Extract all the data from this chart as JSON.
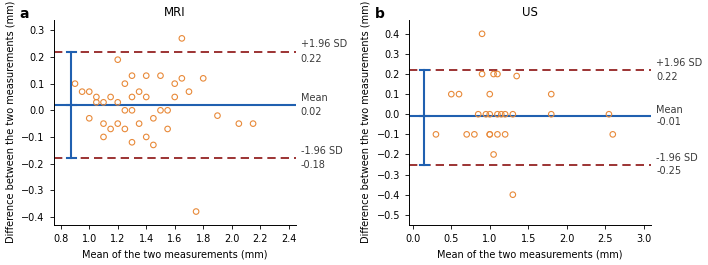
{
  "panel_a": {
    "title": "MRI",
    "mean_line": 0.02,
    "upper_sd": 0.22,
    "lower_sd": -0.18,
    "upper_sd_label": "+1.96 SD",
    "lower_sd_label": "-1.96 SD",
    "mean_label": "Mean",
    "upper_val_label": "0.22",
    "lower_val_label": "-0.18",
    "mean_val_label": "0.02",
    "xlim": [
      0.75,
      2.45
    ],
    "ylim": [
      -0.43,
      0.34
    ],
    "xticks": [
      0.8,
      1.0,
      1.2,
      1.4,
      1.6,
      1.8,
      2.0,
      2.2,
      2.4
    ],
    "yticks": [
      -0.4,
      -0.3,
      -0.2,
      -0.1,
      0.0,
      0.1,
      0.2,
      0.3
    ],
    "error_bar_x": 0.875,
    "scatter_x": [
      0.9,
      0.95,
      1.0,
      1.0,
      1.05,
      1.05,
      1.1,
      1.1,
      1.1,
      1.15,
      1.15,
      1.2,
      1.2,
      1.2,
      1.25,
      1.25,
      1.25,
      1.3,
      1.3,
      1.3,
      1.3,
      1.35,
      1.35,
      1.4,
      1.4,
      1.4,
      1.45,
      1.45,
      1.5,
      1.5,
      1.55,
      1.55,
      1.6,
      1.6,
      1.65,
      1.65,
      1.7,
      1.75,
      1.8,
      1.9,
      2.05,
      2.15
    ],
    "scatter_y": [
      0.1,
      0.07,
      0.07,
      -0.03,
      0.03,
      0.05,
      0.03,
      -0.05,
      -0.1,
      0.05,
      -0.07,
      0.19,
      0.03,
      -0.05,
      0.1,
      0.0,
      -0.07,
      0.13,
      0.05,
      0.0,
      -0.12,
      0.07,
      -0.05,
      0.13,
      0.05,
      -0.1,
      -0.03,
      -0.13,
      0.13,
      0.0,
      0.0,
      -0.07,
      0.1,
      0.05,
      0.27,
      0.12,
      0.07,
      -0.38,
      0.12,
      -0.02,
      -0.05,
      -0.05
    ]
  },
  "panel_b": {
    "title": "US",
    "mean_line": -0.01,
    "upper_sd": 0.22,
    "lower_sd": -0.25,
    "upper_sd_label": "+1.96 SD",
    "lower_sd_label": "-1.96 SD",
    "mean_label": "Mean",
    "upper_val_label": "0.22",
    "lower_val_label": "-0.25",
    "mean_val_label": "-0.01",
    "xlim": [
      -0.05,
      3.1
    ],
    "ylim": [
      -0.55,
      0.47
    ],
    "xticks": [
      0.0,
      0.5,
      1.0,
      1.5,
      2.0,
      2.5,
      3.0
    ],
    "yticks": [
      -0.5,
      -0.4,
      -0.3,
      -0.2,
      -0.1,
      0.0,
      0.1,
      0.2,
      0.3,
      0.4
    ],
    "error_bar_x": 0.15,
    "scatter_x": [
      0.3,
      0.5,
      0.6,
      0.7,
      0.8,
      0.85,
      0.9,
      0.9,
      0.95,
      1.0,
      1.0,
      1.0,
      1.0,
      1.05,
      1.05,
      1.1,
      1.1,
      1.1,
      1.15,
      1.2,
      1.2,
      1.3,
      1.3,
      1.35,
      1.8,
      1.8,
      2.55,
      2.6
    ],
    "scatter_y": [
      -0.1,
      0.1,
      0.1,
      -0.1,
      -0.1,
      0.0,
      0.4,
      0.2,
      0.0,
      -0.1,
      0.0,
      0.1,
      -0.1,
      0.2,
      -0.2,
      0.0,
      -0.1,
      0.2,
      0.0,
      -0.1,
      0.0,
      0.0,
      -0.4,
      0.19,
      0.0,
      0.1,
      0.0,
      -0.1
    ]
  },
  "scatter_edgecolor": "#E88A3A",
  "mean_color": "#2060B0",
  "sd_color": "#8B1010",
  "error_bar_color": "#2060B0",
  "label_color": "#3A3A3A",
  "xlabel": "Mean of the two measurements (mm)",
  "ylabel": "Difference between the two measurements (mm)",
  "fontsize_title": 8.5,
  "fontsize_label": 7,
  "fontsize_tick": 7,
  "fontsize_annot": 7,
  "fontsize_panel": 10
}
